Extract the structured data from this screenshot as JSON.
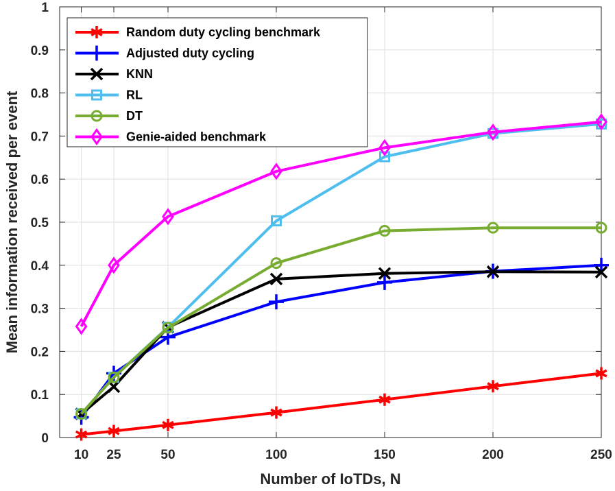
{
  "chart_data": {
    "type": "line",
    "title": "",
    "xlabel": "Number of IoTDs, N",
    "ylabel": "Mean information received per event",
    "x": [
      10,
      25,
      50,
      100,
      150,
      200,
      250
    ],
    "x_ticks": [
      "10",
      "25",
      "50",
      "100",
      "150",
      "200",
      "250"
    ],
    "y_ticks": [
      "0",
      "0.1",
      "0.2",
      "0.3",
      "0.4",
      "0.5",
      "0.6",
      "0.7",
      "0.8",
      "0.9",
      "1"
    ],
    "xlim": [
      0,
      250
    ],
    "ylim": [
      0,
      1
    ],
    "grid": true,
    "legend_position": "top-left",
    "series": [
      {
        "name": "Random duty cycling benchmark",
        "color": "#ff0000",
        "marker": "asterisk",
        "values": [
          0.007,
          0.015,
          0.029,
          0.058,
          0.088,
          0.119,
          0.149
        ]
      },
      {
        "name": "Adjusted duty cycling",
        "color": "#0000ff",
        "marker": "plus",
        "values": [
          0.047,
          0.149,
          0.233,
          0.315,
          0.36,
          0.386,
          0.4
        ]
      },
      {
        "name": "KNN",
        "color": "#000000",
        "marker": "cross",
        "values": [
          0.055,
          0.118,
          0.256,
          0.368,
          0.381,
          0.385,
          0.384
        ]
      },
      {
        "name": "RL",
        "color": "#4dbeee",
        "marker": "square",
        "values": [
          0.055,
          0.14,
          0.256,
          0.503,
          0.652,
          0.706,
          0.728
        ]
      },
      {
        "name": "DT",
        "color": "#77ac30",
        "marker": "circle",
        "values": [
          0.055,
          0.14,
          0.255,
          0.405,
          0.48,
          0.487,
          0.487
        ]
      },
      {
        "name": "Genie-aided benchmark",
        "color": "#ff00ff",
        "marker": "diamond",
        "values": [
          0.258,
          0.4,
          0.513,
          0.618,
          0.673,
          0.709,
          0.733
        ]
      }
    ]
  }
}
